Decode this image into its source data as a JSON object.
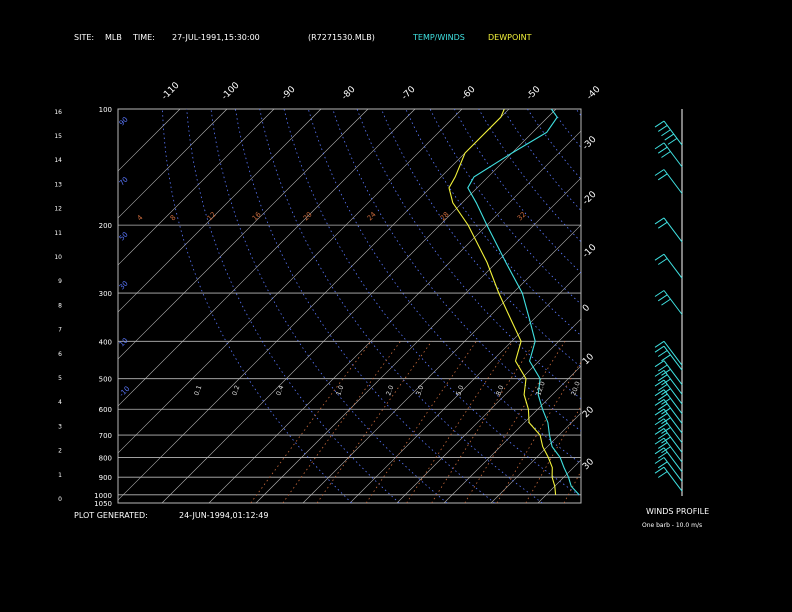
{
  "header": {
    "site_label": "SITE:",
    "site": "MLB",
    "time_label": "TIME:",
    "time": "27-JUL-1991,15:30:00",
    "file": "(R7271530.MLB)",
    "temp_winds": "TEMP/WINDS",
    "dewpoint": "DEWPOINT"
  },
  "footer": {
    "plot_generated_label": "PLOT GENERATED:",
    "plot_generated": "24-JUN-1994,01:12:49",
    "winds_profile": "WINDS PROFILE",
    "barb_note": "One barb - 10.0 m/s"
  },
  "colors": {
    "temp_winds": "#3fe0e0",
    "dewpoint": "#f2f23a",
    "isotherm": "#b8b8b8",
    "mixing_ratio": "#c86a3c",
    "dry_adiabat": "#5a78ff",
    "background": "#000000"
  },
  "chart_data": {
    "type": "line",
    "title": "",
    "xlabel": "",
    "ylabel": "",
    "pressure_range": [
      1050,
      100
    ],
    "pressure_levels": [
      100,
      200,
      300,
      400,
      500,
      600,
      700,
      800,
      900,
      1000,
      1050
    ],
    "pressure_tick_labels": [
      "100",
      "200",
      "300",
      "400",
      "500",
      "600",
      "700",
      "800",
      "900",
      "1000",
      "1050"
    ],
    "height_km_ticks": [
      "0",
      "1",
      "2",
      "3",
      "4",
      "5",
      "6",
      "7",
      "8",
      "9",
      "10",
      "11",
      "12",
      "13",
      "14",
      "15",
      "16"
    ],
    "temperature_labels_top": [
      "-110",
      "-100",
      "-90",
      "-80",
      "-70",
      "-60",
      "-50",
      "-40"
    ],
    "temperature_labels_right": [
      "-30",
      "-20",
      "-10",
      "0",
      "10",
      "20",
      "30"
    ],
    "mixing_ratio_labels_upper": [
      "4",
      "8",
      "12",
      "16",
      "20",
      "24",
      "28",
      "32"
    ],
    "mixing_ratio_labels_lower": [
      "0.1",
      "0.2",
      "0.4",
      "1.0",
      "2.0",
      "3.0",
      "5.0",
      "8.0",
      "12.0",
      "20.0"
    ],
    "adiabat_labels": [
      "90",
      "70",
      "50",
      "30",
      "10",
      "-10"
    ],
    "series": [
      {
        "name": "TEMP/WINDS",
        "points": [
          {
            "p": 1000,
            "t": 27.0
          },
          {
            "p": 950,
            "t": 23.5
          },
          {
            "p": 900,
            "t": 21.0
          },
          {
            "p": 850,
            "t": 18.0
          },
          {
            "p": 800,
            "t": 15.0
          },
          {
            "p": 750,
            "t": 11.0
          },
          {
            "p": 700,
            "t": 8.0
          },
          {
            "p": 650,
            "t": 5.0
          },
          {
            "p": 600,
            "t": 1.0
          },
          {
            "p": 550,
            "t": -3.0
          },
          {
            "p": 500,
            "t": -6.0
          },
          {
            "p": 450,
            "t": -12.0
          },
          {
            "p": 400,
            "t": -15.0
          },
          {
            "p": 350,
            "t": -21.0
          },
          {
            "p": 300,
            "t": -28.0
          },
          {
            "p": 250,
            "t": -38.0
          },
          {
            "p": 200,
            "t": -50.0
          },
          {
            "p": 175,
            "t": -57.0
          },
          {
            "p": 160,
            "t": -62.0
          },
          {
            "p": 150,
            "t": -63.0
          },
          {
            "p": 130,
            "t": -60.0
          },
          {
            "p": 115,
            "t": -57.0
          },
          {
            "p": 105,
            "t": -58.0
          },
          {
            "p": 100,
            "t": -61.0
          }
        ]
      },
      {
        "name": "DEWPOINT",
        "points": [
          {
            "p": 1000,
            "t": 22.0
          },
          {
            "p": 950,
            "t": 20.0
          },
          {
            "p": 900,
            "t": 17.5
          },
          {
            "p": 850,
            "t": 15.5
          },
          {
            "p": 800,
            "t": 12.5
          },
          {
            "p": 750,
            "t": 9.0
          },
          {
            "p": 700,
            "t": 6.0
          },
          {
            "p": 650,
            "t": 1.0
          },
          {
            "p": 600,
            "t": -2.0
          },
          {
            "p": 550,
            "t": -6.0
          },
          {
            "p": 500,
            "t": -9.0
          },
          {
            "p": 450,
            "t": -15.0
          },
          {
            "p": 400,
            "t": -18.0
          },
          {
            "p": 350,
            "t": -25.0
          },
          {
            "p": 300,
            "t": -33.0
          },
          {
            "p": 250,
            "t": -42.0
          },
          {
            "p": 200,
            "t": -54.0
          },
          {
            "p": 175,
            "t": -62.0
          },
          {
            "p": 160,
            "t": -66.0
          },
          {
            "p": 150,
            "t": -67.0
          },
          {
            "p": 130,
            "t": -70.0
          },
          {
            "p": 115,
            "t": -70.0
          },
          {
            "p": 105,
            "t": -70.0
          },
          {
            "p": 100,
            "t": -71.0
          }
        ]
      }
    ],
    "wind_profile": [
      {
        "km": 14.5,
        "speed": 45
      },
      {
        "km": 13.6,
        "speed": 30
      },
      {
        "km": 12.5,
        "speed": 20
      },
      {
        "km": 10.5,
        "speed": 20
      },
      {
        "km": 9.0,
        "speed": 20
      },
      {
        "km": 7.5,
        "speed": 30
      },
      {
        "km": 5.4,
        "speed": 10
      },
      {
        "km": 5.2,
        "speed": 30
      },
      {
        "km": 4.6,
        "speed": 30
      },
      {
        "km": 4.2,
        "speed": 30
      },
      {
        "km": 3.8,
        "speed": 30
      },
      {
        "km": 3.4,
        "speed": 30
      },
      {
        "km": 3.0,
        "speed": 30
      },
      {
        "km": 2.6,
        "speed": 30
      },
      {
        "km": 2.2,
        "speed": 30
      },
      {
        "km": 1.8,
        "speed": 30
      },
      {
        "km": 1.4,
        "speed": 30
      },
      {
        "km": 1.0,
        "speed": 20
      },
      {
        "km": 0.6,
        "speed": 20
      },
      {
        "km": 0.2,
        "speed": 20
      }
    ]
  }
}
